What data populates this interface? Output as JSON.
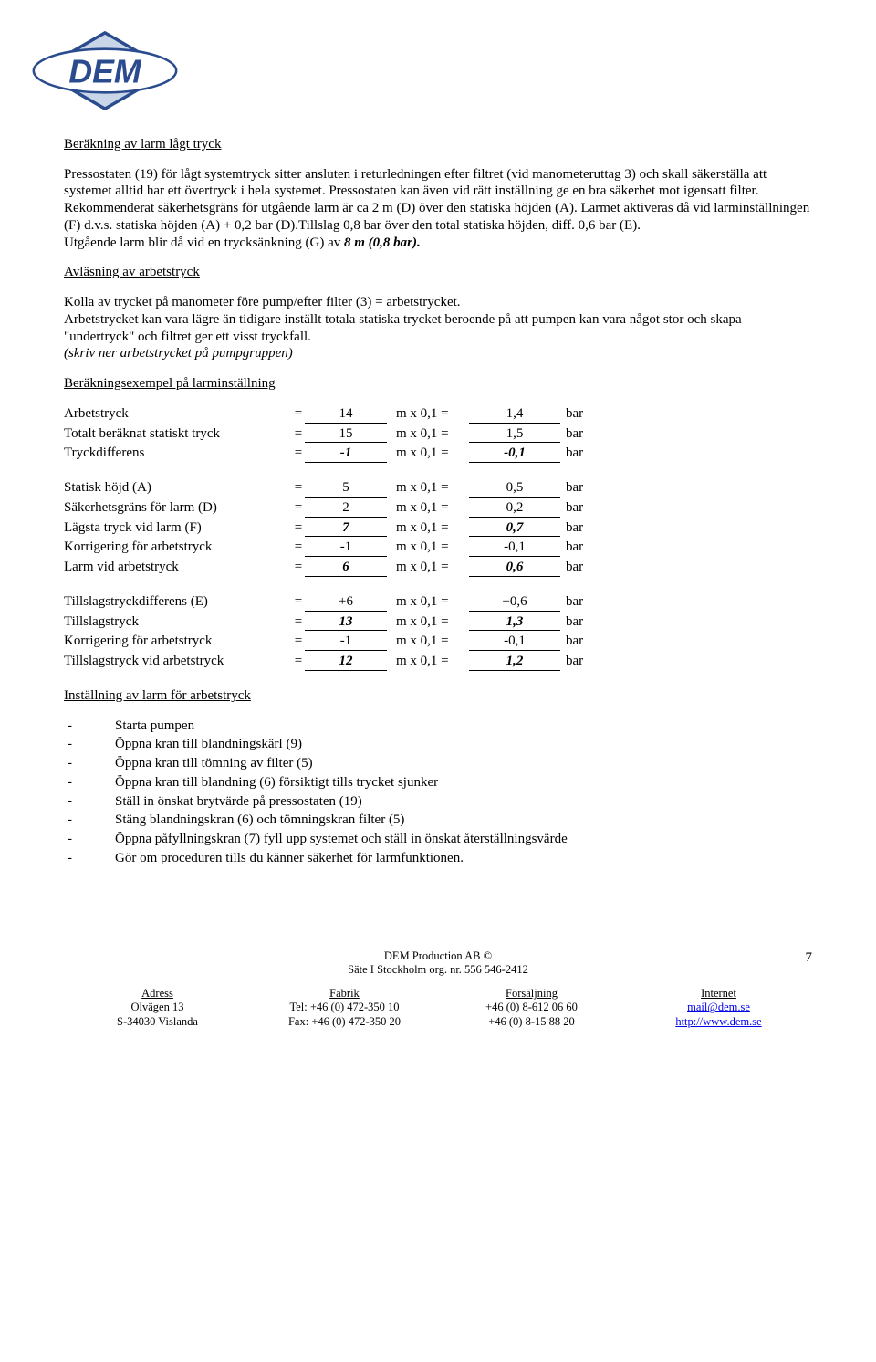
{
  "logo": {
    "text": "DEM",
    "outline_color": "#2a4b8d",
    "fill_color": "#c9d6e8"
  },
  "section1": {
    "title": "Beräkning av larm lågt tryck",
    "para1": "Pressostaten (19) för lågt systemtryck sitter ansluten i returledningen efter filtret (vid manometeruttag 3) och skall säkerställa att systemet alltid har ett övertryck i hela systemet. Pressostaten kan även vid rätt inställning ge en bra säkerhet mot igensatt filter. Rekommenderat säkerhetsgräns för utgående larm är ca 2 m (D) över den statiska höjden (A). Larmet aktiveras då vid larminställningen (F) d.v.s. statiska höjden (A) + 0,2 bar (D).Tillslag 0,8 bar över den total statiska höjden, diff. 0,6 bar (E).",
    "para1_tail": "Utgående larm blir då vid en trycksänkning (G) av ",
    "para1_bold": "8 m (0,8 bar)."
  },
  "section2": {
    "title": "Avläsning av  arbetstryck",
    "para": "Kolla av trycket på manometer före pump/efter filter (3) = arbetstrycket.\nArbetstrycket kan vara lägre än tidigare inställt totala statiska trycket beroende på att pumpen kan vara något stor och skapa \"undertryck\" och filtret ger ett visst tryckfall.",
    "para_italic": "(skriv ner arbetstrycket på pumpgruppen)"
  },
  "section3": {
    "title": "Beräkningsexempel på larminställning"
  },
  "calc_mid": "m  x 0,1 =",
  "calc_unit": "bar",
  "block1": [
    {
      "label": "Arbetstryck",
      "v1": "14",
      "v2": "1,4",
      "bi": false
    },
    {
      "label": "Totalt beräknat statiskt tryck",
      "v1": "15",
      "v2": "1,5",
      "bi": false
    },
    {
      "label": "Tryckdifferens",
      "v1": "-1",
      "v2": "-0,1",
      "bi": true
    }
  ],
  "block2": [
    {
      "label": "Statisk höjd (A)",
      "v1": "5",
      "v2": "0,5",
      "bi": false
    },
    {
      "label": "Säkerhetsgräns för larm (D)",
      "v1": "2",
      "v2": "0,2",
      "bi": false
    },
    {
      "label": "Lägsta tryck vid larm (F)",
      "v1": "7",
      "v2": "0,7",
      "bi": true
    },
    {
      "label": "Korrigering för arbetstryck",
      "v1": "-1",
      "v2": "-0,1",
      "bi": false
    },
    {
      "label": "Larm vid arbetstryck",
      "v1": "6",
      "v2": "0,6",
      "bi": true
    }
  ],
  "block3": [
    {
      "label": "Tillslagstryckdifferens (E)",
      "v1": "+6",
      "v2": "+0,6",
      "bi": false
    },
    {
      "label": "Tillslagstryck",
      "v1": "13",
      "v2": "1,3",
      "bi": true
    },
    {
      "label": "Korrigering för arbetstryck",
      "v1": "-1",
      "v2": "-0,1",
      "bi": false
    },
    {
      "label": "Tillslagstryck vid arbetstryck",
      "v1": "12",
      "v2": "1,2",
      "bi": true
    }
  ],
  "section4": {
    "title": "Inställning av larm för arbetstryck",
    "steps": [
      "Starta pumpen",
      "Öppna kran till blandningskärl (9)",
      "Öppna kran till tömning av filter (5)",
      "Öppna kran till blandning (6) försiktigt tills trycket sjunker",
      "Ställ in önskat brytvärde på pressostaten (19)",
      "Stäng blandningskran (6) och tömningskran filter (5)",
      "Öppna påfyllningskran (7) fyll upp systemet och ställ in önskat återställningsvärde",
      "Gör om proceduren tills du känner säkerhet för larmfunktionen."
    ]
  },
  "footer": {
    "company": "DEM Production AB ©",
    "org": "Säte I Stockholm org. nr. 556 546-2412",
    "page": "7",
    "cols": [
      {
        "head": "Adress",
        "l1": "Olvägen 13",
        "l2": "S-34030 Vislanda"
      },
      {
        "head": "Fabrik",
        "l1": "Tel: +46 (0) 472-350 10",
        "l2": "Fax: +46 (0) 472-350 20"
      },
      {
        "head": "Försäljning",
        "l1": "+46 (0) 8-612 06 60",
        "l2": "+46 (0) 8-15 88 20"
      },
      {
        "head": "Internet",
        "l1": "mail@dem.se",
        "l2": "http://www.dem.se",
        "link": true
      }
    ]
  }
}
